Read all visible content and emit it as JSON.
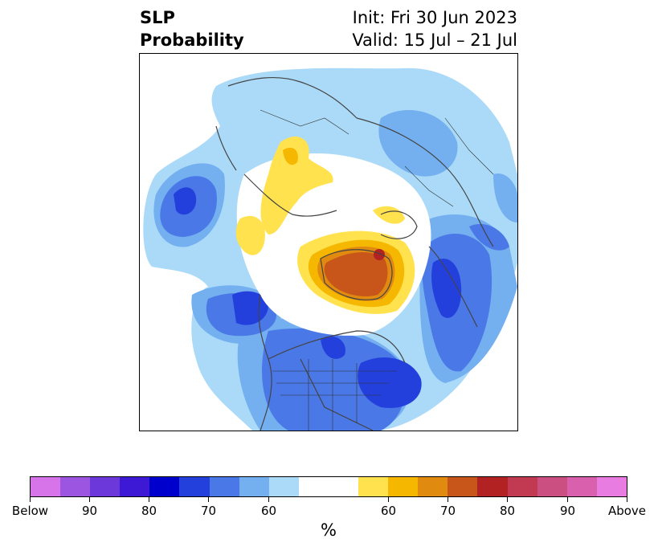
{
  "title": {
    "left_line1": "SLP",
    "left_line2": "Probability",
    "right_line1": "Init: Fri 30 Jun 2023",
    "right_line2": "Valid: 15 Jul – 21 Jul"
  },
  "colorbar": {
    "colors": [
      "#d874ea",
      "#9b55e0",
      "#6d38da",
      "#3d19d5",
      "#0000cc",
      "#2440dc",
      "#4a78e6",
      "#74b0f0",
      "#aadaf8",
      "#ffffff",
      "#ffe24e",
      "#f5b700",
      "#e08a10",
      "#c8561a",
      "#b22222",
      "#c23a52",
      "#cc4f82",
      "#d960ad",
      "#e87ce0"
    ],
    "tick_labels": [
      "Below",
      "90",
      "80",
      "70",
      "60",
      "60",
      "70",
      "80",
      "90",
      "Above"
    ],
    "unit": "%"
  },
  "map": {
    "colors": {
      "blue_60": "#aadaf8",
      "blue_70": "#74b0f0",
      "blue_80": "#4a78e6",
      "blue_90": "#2440dc",
      "yellow_60": "#ffe24e",
      "yellow_70": "#f5b700",
      "orange_80": "#e08a10",
      "orange_90": "#c8561a",
      "red": "#b22222",
      "coast": "#444444"
    }
  }
}
